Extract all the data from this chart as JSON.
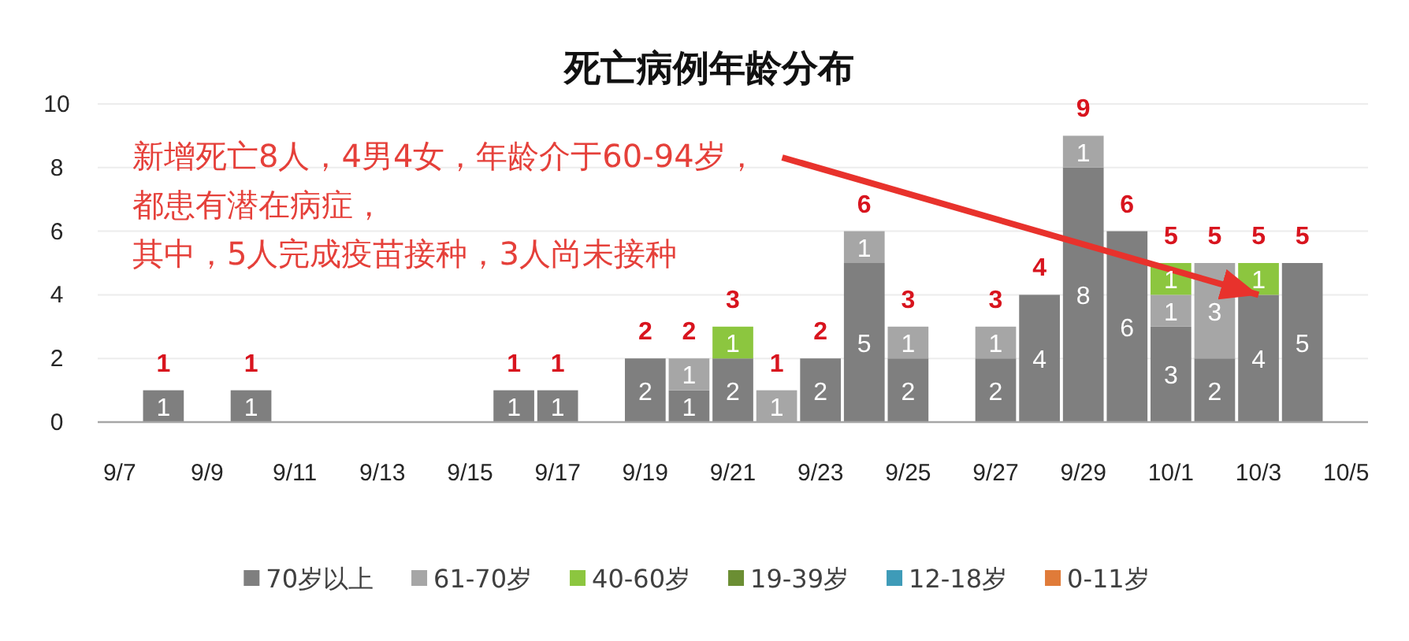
{
  "chart_data": {
    "type": "bar",
    "title": "死亡病例年龄分布",
    "categories": [
      "9/7",
      null,
      "9/9",
      null,
      "9/11",
      null,
      "9/13",
      null,
      "9/15",
      null,
      "9/17",
      null,
      "9/19",
      null,
      "9/21",
      null,
      "9/23",
      null,
      "9/25",
      null,
      "9/27",
      null,
      "9/29",
      null,
      "10/1",
      null,
      "10/3",
      null,
      "10/5"
    ],
    "series": [
      {
        "name": "70岁以上",
        "color": "#7f7f7f",
        "values": [
          null,
          1,
          null,
          1,
          null,
          null,
          null,
          null,
          null,
          1,
          1,
          null,
          2,
          1,
          2,
          null,
          2,
          5,
          2,
          null,
          2,
          4,
          8,
          6,
          3,
          2,
          4,
          5,
          null
        ]
      },
      {
        "name": "61-70岁",
        "color": "#a6a6a6",
        "values": [
          null,
          null,
          null,
          null,
          null,
          null,
          null,
          null,
          null,
          null,
          null,
          null,
          null,
          1,
          null,
          1,
          null,
          1,
          1,
          null,
          1,
          null,
          1,
          null,
          1,
          3,
          null,
          null,
          null
        ]
      },
      {
        "name": "40-60岁",
        "color": "#8cc63f",
        "values": [
          null,
          null,
          null,
          null,
          null,
          null,
          null,
          null,
          null,
          null,
          null,
          null,
          null,
          null,
          1,
          null,
          null,
          null,
          null,
          null,
          null,
          null,
          null,
          null,
          1,
          null,
          1,
          null,
          null
        ]
      },
      {
        "name": "19-39岁",
        "color": "#6b8e33",
        "values": [
          null,
          null,
          null,
          null,
          null,
          null,
          null,
          null,
          null,
          null,
          null,
          null,
          null,
          null,
          null,
          null,
          null,
          null,
          null,
          null,
          null,
          null,
          null,
          null,
          null,
          null,
          null,
          null,
          null
        ]
      },
      {
        "name": "12-18岁",
        "color": "#3e9bb8",
        "values": [
          null,
          null,
          null,
          null,
          null,
          null,
          null,
          null,
          null,
          null,
          null,
          null,
          null,
          null,
          null,
          null,
          null,
          null,
          null,
          null,
          null,
          null,
          null,
          null,
          null,
          null,
          null,
          null,
          null
        ]
      },
      {
        "name": "0-11岁",
        "color": "#e07b39",
        "values": [
          null,
          null,
          null,
          null,
          null,
          null,
          null,
          null,
          null,
          null,
          null,
          null,
          null,
          null,
          null,
          null,
          null,
          null,
          null,
          null,
          null,
          null,
          null,
          null,
          null,
          null,
          null,
          null,
          null
        ]
      }
    ],
    "stacked": true,
    "data_labels": true,
    "totals": [
      null,
      "1",
      null,
      "1",
      null,
      null,
      null,
      null,
      null,
      "1",
      "1",
      null,
      "2",
      "2",
      "3",
      "1",
      "2",
      "6",
      "3",
      null,
      "3",
      "4",
      "9",
      "6",
      "5",
      "5",
      "5",
      "5",
      null
    ],
    "ylim": [
      0,
      10
    ],
    "yticks": [
      0,
      2,
      4,
      6,
      8,
      10
    ],
    "grid": "y",
    "legend": "bottom",
    "annotations": [
      {
        "text": "新增死亡8人，4男4女，年龄介于60-94岁，",
        "x": "10/3",
        "y": 4
      },
      "都患有潜在病症，",
      "其中，5人完成疫苗接种，3人尚未接种"
    ]
  }
}
